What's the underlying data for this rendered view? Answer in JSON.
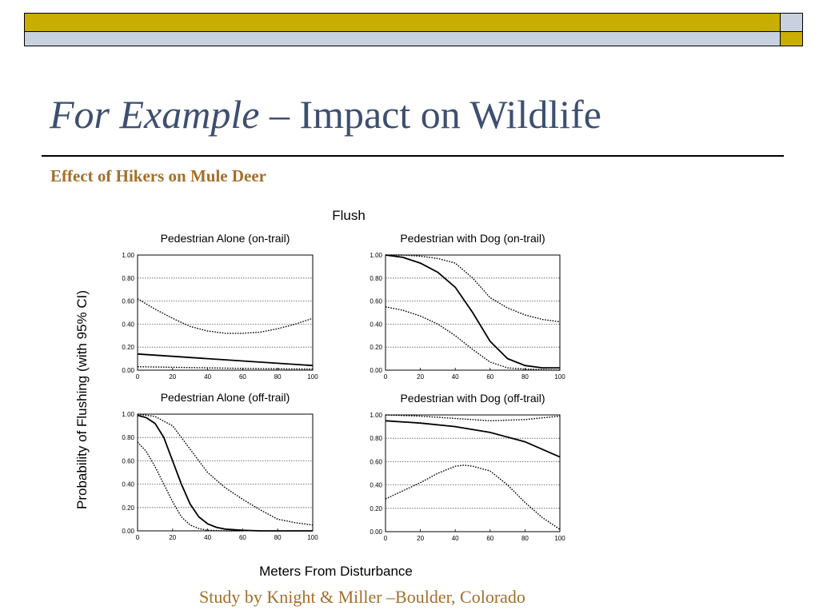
{
  "header": {
    "title_italic": "For Example",
    "title_rest": " – Impact on Wildlife",
    "subtitle": "Effect of Hikers on  Mule Deer"
  },
  "footer": {
    "text": "Study by Knight & Miller –Boulder, Colorado"
  },
  "colors": {
    "bar_yellow": "#c9ad00",
    "bar_grey": "#c8d1df",
    "title": "#3e4f70",
    "accent_text": "#a46f2a"
  },
  "figure": {
    "title": "Flush",
    "ylabel": "Probability of Flushing (with 95% CI)",
    "xlabel": "Meters From Disturbance"
  },
  "chart_data": [
    {
      "type": "line",
      "title": "Pedestrian Alone (on-trail)",
      "xlim": [
        0,
        100
      ],
      "ylim": [
        0,
        1
      ],
      "xticks": [
        "0",
        "20",
        "40",
        "60",
        "80",
        "100"
      ],
      "yticks": [
        "0.00",
        "0.20",
        "0.40",
        "0.60",
        "0.80",
        "1.00"
      ],
      "grid": "horizontal-dotted",
      "series": [
        {
          "style": "solid",
          "x": [
            0,
            20,
            40,
            60,
            80,
            100
          ],
          "y": [
            0.14,
            0.12,
            0.1,
            0.08,
            0.06,
            0.04
          ]
        },
        {
          "style": "dotted",
          "x": [
            0,
            10,
            20,
            30,
            40,
            50,
            60,
            70,
            80,
            90,
            100
          ],
          "y": [
            0.62,
            0.53,
            0.45,
            0.38,
            0.34,
            0.32,
            0.32,
            0.33,
            0.36,
            0.4,
            0.45
          ]
        },
        {
          "style": "dotted",
          "x": [
            0,
            20,
            40,
            60,
            80,
            100
          ],
          "y": [
            0.03,
            0.025,
            0.02,
            0.015,
            0.012,
            0.01
          ]
        }
      ]
    },
    {
      "type": "line",
      "title": "Pedestrian with Dog (on-trail)",
      "xlim": [
        0,
        100
      ],
      "ylim": [
        0,
        1
      ],
      "xticks": [
        "0",
        "20",
        "40",
        "60",
        "80",
        "100"
      ],
      "yticks": [
        "0.00",
        "0.20",
        "0.40",
        "0.60",
        "0.80",
        "1.00"
      ],
      "grid": "horizontal-dotted",
      "series": [
        {
          "style": "solid",
          "x": [
            0,
            10,
            20,
            30,
            40,
            50,
            60,
            70,
            80,
            90,
            100
          ],
          "y": [
            1.0,
            0.98,
            0.93,
            0.85,
            0.72,
            0.5,
            0.25,
            0.1,
            0.04,
            0.02,
            0.02
          ]
        },
        {
          "style": "dotted",
          "x": [
            0,
            10,
            20,
            30,
            40,
            50,
            60,
            70,
            80,
            90,
            100
          ],
          "y": [
            1.0,
            1.0,
            0.99,
            0.97,
            0.93,
            0.8,
            0.63,
            0.54,
            0.48,
            0.44,
            0.42
          ]
        },
        {
          "style": "dotted",
          "x": [
            0,
            10,
            20,
            30,
            40,
            50,
            60,
            70,
            80,
            90,
            100
          ],
          "y": [
            0.55,
            0.52,
            0.47,
            0.4,
            0.3,
            0.18,
            0.07,
            0.02,
            0.01,
            0.005,
            0.0
          ]
        }
      ]
    },
    {
      "type": "line",
      "title": "Pedestrian Alone (off-trail)",
      "xlim": [
        0,
        100
      ],
      "ylim": [
        0,
        1
      ],
      "xticks": [
        "0",
        "20",
        "40",
        "60",
        "80",
        "100"
      ],
      "yticks": [
        "0.00",
        "0.20",
        "0.40",
        "0.60",
        "0.80",
        "1.00"
      ],
      "grid": "horizontal-dotted",
      "series": [
        {
          "style": "solid",
          "x": [
            0,
            5,
            10,
            15,
            20,
            25,
            30,
            35,
            40,
            45,
            50,
            60,
            70,
            80,
            100
          ],
          "y": [
            0.99,
            0.97,
            0.92,
            0.8,
            0.6,
            0.4,
            0.23,
            0.12,
            0.06,
            0.03,
            0.015,
            0.005,
            0.0,
            0.0,
            0.0
          ]
        },
        {
          "style": "dotted",
          "x": [
            0,
            10,
            20,
            30,
            40,
            50,
            60,
            70,
            80,
            90,
            100
          ],
          "y": [
            1.0,
            0.98,
            0.9,
            0.7,
            0.5,
            0.37,
            0.27,
            0.18,
            0.1,
            0.07,
            0.05
          ]
        },
        {
          "style": "dotted",
          "x": [
            0,
            5,
            10,
            15,
            20,
            25,
            30,
            35,
            40,
            50,
            60
          ],
          "y": [
            0.76,
            0.68,
            0.55,
            0.4,
            0.25,
            0.12,
            0.05,
            0.02,
            0.005,
            0.0,
            0.0
          ]
        }
      ]
    },
    {
      "type": "line",
      "title": "Pedestrian with Dog (off-trail)",
      "xlim": [
        0,
        100
      ],
      "ylim": [
        0,
        1
      ],
      "xticks": [
        "0",
        "20",
        "40",
        "60",
        "80",
        "100"
      ],
      "yticks": [
        "0.00",
        "0.20",
        "0.40",
        "0.60",
        "0.80",
        "1.00"
      ],
      "grid": "horizontal-dotted",
      "series": [
        {
          "style": "solid",
          "x": [
            0,
            20,
            40,
            60,
            80,
            100
          ],
          "y": [
            0.95,
            0.93,
            0.9,
            0.85,
            0.77,
            0.64
          ]
        },
        {
          "style": "dotted",
          "x": [
            0,
            20,
            40,
            60,
            80,
            100
          ],
          "y": [
            1.0,
            0.99,
            0.97,
            0.95,
            0.96,
            0.99
          ]
        },
        {
          "style": "dotted",
          "x": [
            0,
            10,
            20,
            30,
            40,
            45,
            50,
            60,
            70,
            80,
            90,
            100
          ],
          "y": [
            0.28,
            0.35,
            0.42,
            0.5,
            0.56,
            0.57,
            0.56,
            0.52,
            0.4,
            0.25,
            0.12,
            0.02
          ]
        }
      ]
    }
  ]
}
